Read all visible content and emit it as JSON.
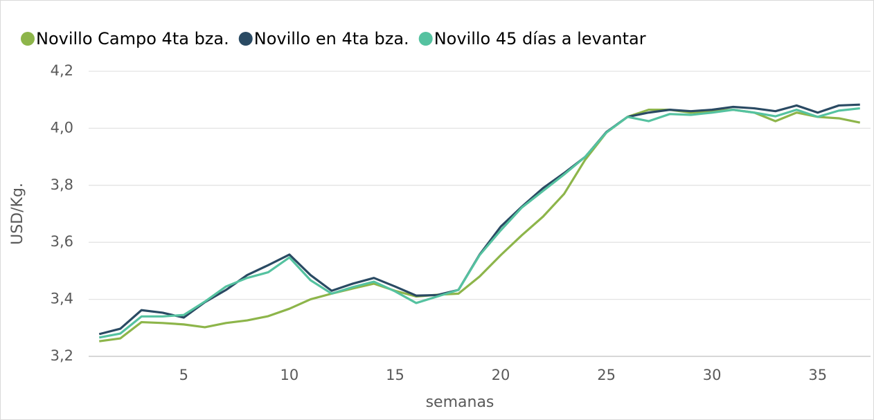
{
  "chart_data": {
    "type": "line",
    "xlabel": "semanas",
    "ylabel": "USD/Kg.",
    "x": [
      1,
      2,
      3,
      4,
      5,
      6,
      7,
      8,
      9,
      10,
      11,
      12,
      13,
      14,
      15,
      16,
      17,
      18,
      19,
      20,
      21,
      22,
      23,
      24,
      25,
      26,
      27,
      28,
      29,
      30,
      31,
      32,
      33,
      34,
      35,
      36,
      37
    ],
    "series": [
      {
        "name": "Novillo Campo 4ta bza.",
        "color": "#8db54a",
        "values": [
          3.253,
          3.263,
          3.32,
          3.317,
          3.312,
          3.302,
          3.317,
          3.326,
          3.341,
          3.367,
          3.4,
          3.42,
          3.438,
          3.455,
          3.43,
          3.41,
          3.416,
          3.42,
          3.48,
          3.555,
          3.625,
          3.69,
          3.77,
          3.89,
          3.985,
          4.04,
          4.065,
          4.065,
          4.055,
          4.06,
          4.065,
          4.055,
          4.025,
          4.055,
          4.04,
          4.035,
          4.02
        ]
      },
      {
        "name": "Novillo en 4ta bza.",
        "color": "#2a4a63",
        "values": [
          3.278,
          3.297,
          3.362,
          3.353,
          3.336,
          3.39,
          3.433,
          3.485,
          3.52,
          3.557,
          3.485,
          3.43,
          3.455,
          3.475,
          3.445,
          3.413,
          3.415,
          3.433,
          3.557,
          3.655,
          3.725,
          3.79,
          3.843,
          3.9,
          3.987,
          4.04,
          4.055,
          4.065,
          4.06,
          4.065,
          4.075,
          4.07,
          4.06,
          4.08,
          4.055,
          4.08,
          4.083
        ]
      },
      {
        "name": "Novillo 45 días a levantar",
        "color": "#55c2a0",
        "values": [
          3.266,
          3.28,
          3.34,
          3.34,
          3.345,
          3.392,
          3.445,
          3.475,
          3.495,
          3.547,
          3.467,
          3.42,
          3.443,
          3.462,
          3.428,
          3.387,
          3.41,
          3.433,
          3.555,
          3.642,
          3.722,
          3.78,
          3.838,
          3.9,
          3.985,
          4.04,
          4.025,
          4.05,
          4.047,
          4.055,
          4.065,
          4.055,
          4.042,
          4.065,
          4.04,
          4.062,
          4.07
        ]
      }
    ],
    "xlim": [
      0.5,
      37.5
    ],
    "xticks": [
      5,
      10,
      15,
      20,
      25,
      30,
      35
    ],
    "ylim": [
      3.2,
      4.2
    ],
    "yticks": [
      {
        "value": 3.2,
        "label": "3,2"
      },
      {
        "value": 3.4,
        "label": "3,4"
      },
      {
        "value": 3.6,
        "label": "3,6"
      },
      {
        "value": 3.8,
        "label": "3,8"
      },
      {
        "value": 4.0,
        "label": "4,0"
      },
      {
        "value": 4.2,
        "label": "4,2"
      }
    ],
    "grid": true,
    "legend": "top"
  }
}
